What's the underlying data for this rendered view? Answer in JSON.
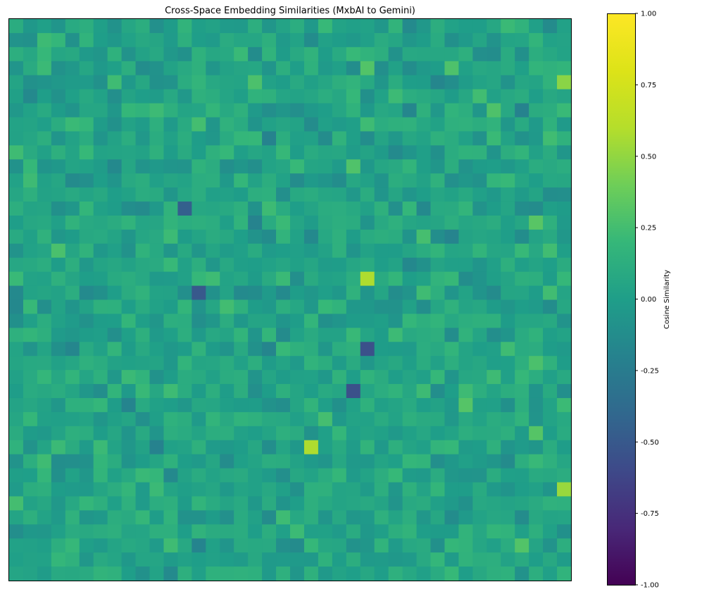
{
  "chart_data": {
    "type": "heatmap",
    "title": "Cross-Space Embedding Similarities (MxbAI to Gemini)",
    "xlabel": "",
    "ylabel": "",
    "axes_ticks_visible": false,
    "colormap": "viridis",
    "grid_size": [
      40,
      40
    ],
    "color_range": [
      -1.0,
      1.0
    ],
    "colorbar": {
      "label": "Cosine Similarity",
      "ticks": [
        "1.00",
        "0.75",
        "0.50",
        "0.25",
        "0.00",
        "-0.25",
        "-0.50",
        "-0.75",
        "-1.00"
      ],
      "tick_values": [
        1.0,
        0.75,
        0.5,
        0.25,
        0.0,
        -0.25,
        -0.5,
        -0.75,
        -1.0
      ]
    },
    "value_distribution": {
      "typical_range": [
        -0.5,
        0.6
      ],
      "center": 0.05
    },
    "notable_cells": [
      {
        "row": 18,
        "col": 25,
        "value": 0.58
      },
      {
        "row": 30,
        "col": 21,
        "value": 0.58
      },
      {
        "row": 33,
        "col": 39,
        "value": 0.52
      },
      {
        "row": 4,
        "col": 39,
        "value": 0.48
      },
      {
        "row": 23,
        "col": 25,
        "value": -0.55
      },
      {
        "row": 26,
        "col": 24,
        "value": -0.55
      },
      {
        "row": 19,
        "col": 13,
        "value": -0.5
      },
      {
        "row": 13,
        "col": 12,
        "value": -0.45
      }
    ]
  }
}
